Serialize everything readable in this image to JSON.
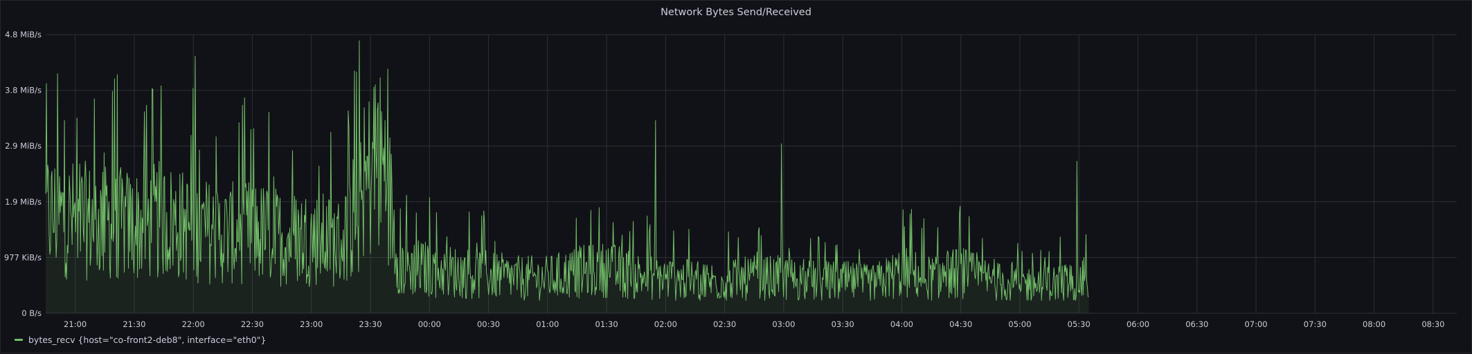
{
  "panel": {
    "title": "Network Bytes Send/Received"
  },
  "colors": {
    "background": "#111217",
    "grid": "#2c2f36",
    "axis_text": "#ccccdc",
    "series": "#73bf69"
  },
  "chart_data": {
    "type": "area",
    "title": "Network Bytes Send/Received",
    "xlabel": "",
    "ylabel": "",
    "x_ticks": [
      "21:00",
      "21:30",
      "22:00",
      "22:30",
      "23:00",
      "23:30",
      "00:00",
      "00:30",
      "01:00",
      "01:30",
      "02:00",
      "02:30",
      "03:00",
      "03:30",
      "04:00",
      "04:30",
      "05:00",
      "05:30",
      "06:00",
      "06:30",
      "07:00",
      "07:30",
      "08:00",
      "08:30"
    ],
    "x_range": [
      "20:45",
      "08:42"
    ],
    "y_ticks": [
      "0 B/s",
      "977 KiB/s",
      "1.9 MiB/s",
      "2.9 MiB/s",
      "3.8 MiB/s",
      "4.8 MiB/s"
    ],
    "ylim": [
      0,
      4.77
    ],
    "y_unit": "MiB/s",
    "grid": true,
    "legend_position": "bottom-left",
    "series": [
      {
        "name": "bytes_recv {host=\"co-front2-deb8\", interface=\"eth0\"}",
        "x": [
          "20:45",
          "21:00",
          "21:15",
          "21:30",
          "21:45",
          "22:00",
          "22:15",
          "22:30",
          "22:45",
          "23:00",
          "23:15",
          "23:25",
          "23:32",
          "23:38",
          "23:45",
          "23:50",
          "24:00",
          "24:15",
          "24:30",
          "24:45",
          "25:00",
          "25:15",
          "25:30",
          "25:45",
          "26:00",
          "26:15",
          "26:30",
          "26:45",
          "27:00",
          "27:15",
          "27:30",
          "27:45",
          "28:00",
          "28:15",
          "28:30",
          "28:45",
          "29:00",
          "29:15",
          "29:30",
          "29:35"
        ],
        "values": [
          1.7,
          1.6,
          1.55,
          1.5,
          1.6,
          1.45,
          1.35,
          1.4,
          1.3,
          1.3,
          1.2,
          1.8,
          2.7,
          2.4,
          0.75,
          0.8,
          0.75,
          0.7,
          0.65,
          0.6,
          0.6,
          0.7,
          0.75,
          0.65,
          0.6,
          0.55,
          0.55,
          0.6,
          0.6,
          0.55,
          0.55,
          0.5,
          0.7,
          0.6,
          0.7,
          0.55,
          0.5,
          0.5,
          0.55,
          0.55
        ],
        "peaks": [
          {
            "x": "20:51",
            "value": 4.1
          },
          {
            "x": "21:19",
            "value": 3.8
          },
          {
            "x": "21:35",
            "value": 3.45
          },
          {
            "x": "22:01",
            "value": 4.4
          },
          {
            "x": "23:34",
            "value": 3.6
          },
          {
            "x": "01:55",
            "value": 3.3
          },
          {
            "x": "02:59",
            "value": 2.9
          },
          {
            "x": "05:29",
            "value": 2.6
          }
        ]
      }
    ]
  }
}
